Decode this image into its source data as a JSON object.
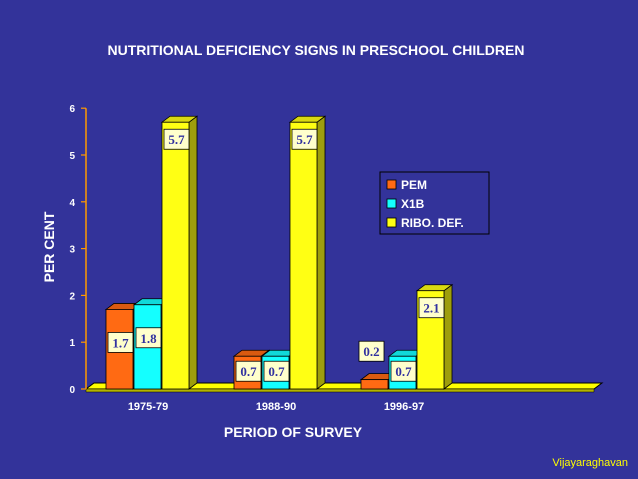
{
  "chart_data": {
    "type": "bar",
    "title": "NUTRITIONAL DEFICIENCY SIGNS IN PRESCHOOL CHILDREN",
    "xlabel": "PERIOD OF SURVEY",
    "ylabel": "PER CENT",
    "ylim": [
      0,
      6
    ],
    "yticks": [
      "0",
      "1",
      "2",
      "3",
      "4",
      "5",
      "6"
    ],
    "categories": [
      "1975-79",
      "1988-90",
      "1996-97"
    ],
    "series": [
      {
        "name": "PEM",
        "values": [
          1.7,
          0.7,
          0.2
        ],
        "labels": [
          "1.7",
          "0.7",
          "0.2"
        ],
        "color": "#ff6a13"
      },
      {
        "name": "X1B",
        "values": [
          1.8,
          0.7,
          0.7
        ],
        "labels": [
          "1.8",
          "0.7",
          "0.7"
        ],
        "color": "#14ffff"
      },
      {
        "name": "RIBO. DEF.",
        "values": [
          5.7,
          5.7,
          2.1
        ],
        "labels": [
          "5.7",
          "5.7",
          "2.1"
        ],
        "color": "#ffff14"
      }
    ],
    "legend_position": "right",
    "grid": false
  },
  "footer": {
    "author": "Vijayaraghavan"
  },
  "colors": {
    "background": "#33339a",
    "text": "#ffffff",
    "axis": "#ff9900",
    "floor": "#ffff00",
    "label_box": "#ffffcc",
    "label_text": "#3232a0"
  }
}
